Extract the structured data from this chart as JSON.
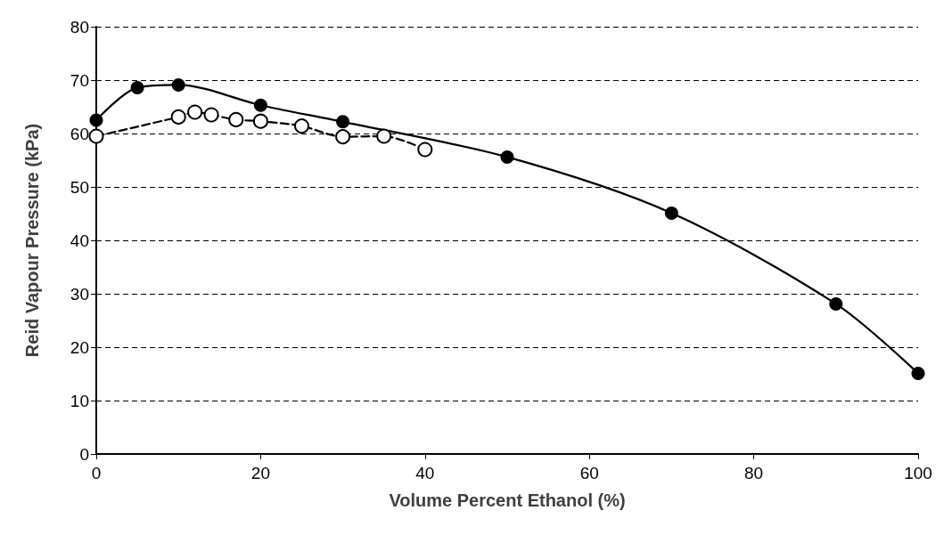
{
  "chart_data": {
    "type": "line",
    "xlabel": "Volume Percent Ethanol (%)",
    "ylabel": "Reid Vapour Pressure (kPa)",
    "xlim": [
      0,
      100
    ],
    "xticks": [
      0,
      20,
      40,
      60,
      80,
      100
    ],
    "ylim": [
      0,
      80
    ],
    "yticks": [
      0,
      10,
      20,
      30,
      40,
      50,
      60,
      70,
      80
    ],
    "grid": "y",
    "marker": "circle",
    "series": [
      {
        "color": "#000000",
        "line_style": "solid",
        "x": [
          0,
          5,
          10,
          20,
          30,
          50,
          70,
          90,
          100
        ],
        "values": [
          62.5,
          68.6,
          69.1,
          65.3,
          62.2,
          55.6,
          45.1,
          28.1,
          15.1
        ]
      },
      {
        "color": "#000000",
        "line_style": "dashed",
        "x": [
          0,
          10,
          12,
          14,
          17,
          20,
          25,
          30,
          35,
          40
        ],
        "values": [
          59.5,
          63.1,
          64.0,
          63.5,
          62.6,
          62.3,
          61.4,
          59.4,
          59.5,
          57.0
        ]
      }
    ]
  }
}
